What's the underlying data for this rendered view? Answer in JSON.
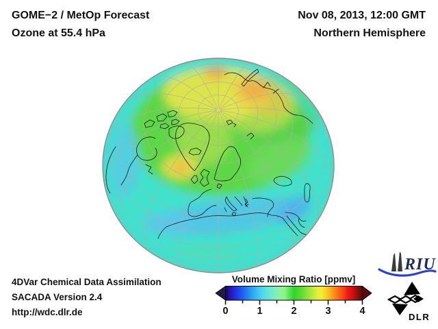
{
  "header": {
    "product": "GOME−2 / MetOp Forecast",
    "level": "Ozone at 55.4 hPa",
    "datetime": "Nov 08, 2013, 12:00 GMT",
    "region": "Northern Hemisphere"
  },
  "map": {
    "projection": "Orthographic view of the Northern Hemisphere centered near 59N 15E (Scandinavia)",
    "field": "Ozone volume mixing ratio at 55.4 hPa",
    "units": "ppmv",
    "graticule": {
      "parallel_step_deg": 10,
      "meridian_step_deg": 20
    },
    "notable_features": [
      {
        "area": "Arctic near pole and northern Siberia",
        "approx_value_ppmv": 2.9,
        "appearance": "orange maxima"
      },
      {
        "area": "North Atlantic west of Ireland",
        "approx_value_ppmv": 2.7,
        "appearance": "orange-yellow patch"
      },
      {
        "area": "Greenland to Scandinavia and central Arctic",
        "approx_value_ppmv": 2.3,
        "appearance": "green-yellow field"
      },
      {
        "area": "Mid-latitude oceans and edges",
        "approx_value_ppmv": 1.7,
        "appearance": "cyan"
      },
      {
        "area": "Subtropical band North Africa to Middle East",
        "approx_value_ppmv": 1.3,
        "appearance": "light-blue minimum band"
      }
    ]
  },
  "colorbar": {
    "title": "Volume Mixing Ratio [ppmv]",
    "min": 0,
    "max": 4,
    "units": "ppmv",
    "tick_labels": [
      "0",
      "1",
      "2",
      "3",
      "4"
    ],
    "minor_tick_step": 0.5,
    "left_arrow_color": "#241a46",
    "right_arrow_color": "#5c0a0a",
    "gradient": [
      {
        "p": 0.0,
        "c": "#12094a"
      },
      {
        "p": 0.03,
        "c": "#2a12a8"
      },
      {
        "p": 0.08,
        "c": "#1f35e8"
      },
      {
        "p": 0.14,
        "c": "#2070f0"
      },
      {
        "p": 0.2,
        "c": "#2fa8f4"
      },
      {
        "p": 0.26,
        "c": "#4cd2f0"
      },
      {
        "p": 0.32,
        "c": "#63e8d8"
      },
      {
        "p": 0.38,
        "c": "#87f2ae"
      },
      {
        "p": 0.43,
        "c": "#8ef488"
      },
      {
        "p": 0.47,
        "c": "#52e252"
      },
      {
        "p": 0.5,
        "c": "#2fd42f"
      },
      {
        "p": 0.56,
        "c": "#63dc35"
      },
      {
        "p": 0.62,
        "c": "#a8e63c"
      },
      {
        "p": 0.67,
        "c": "#e0ee3e"
      },
      {
        "p": 0.7,
        "c": "#f6ee30"
      },
      {
        "p": 0.74,
        "c": "#f8cc22"
      },
      {
        "p": 0.78,
        "c": "#f8a01c"
      },
      {
        "p": 0.82,
        "c": "#f87014"
      },
      {
        "p": 0.86,
        "c": "#f84414"
      },
      {
        "p": 0.895,
        "c": "#f01616"
      },
      {
        "p": 0.93,
        "c": "#cc1010"
      },
      {
        "p": 0.965,
        "c": "#8e0e0e"
      },
      {
        "p": 1.0,
        "c": "#5c0a0a"
      }
    ]
  },
  "footer": {
    "line1": "4DVar Chemical Data Assimilation",
    "line2": "SACADA Version 2.4",
    "line3": "http://wdc.dlr.de"
  },
  "logos": {
    "riu_text": "RIU",
    "riu_text_color": "#222a58",
    "riu_swoosh_color": "#2743d0",
    "dlr_text": "DLR"
  }
}
